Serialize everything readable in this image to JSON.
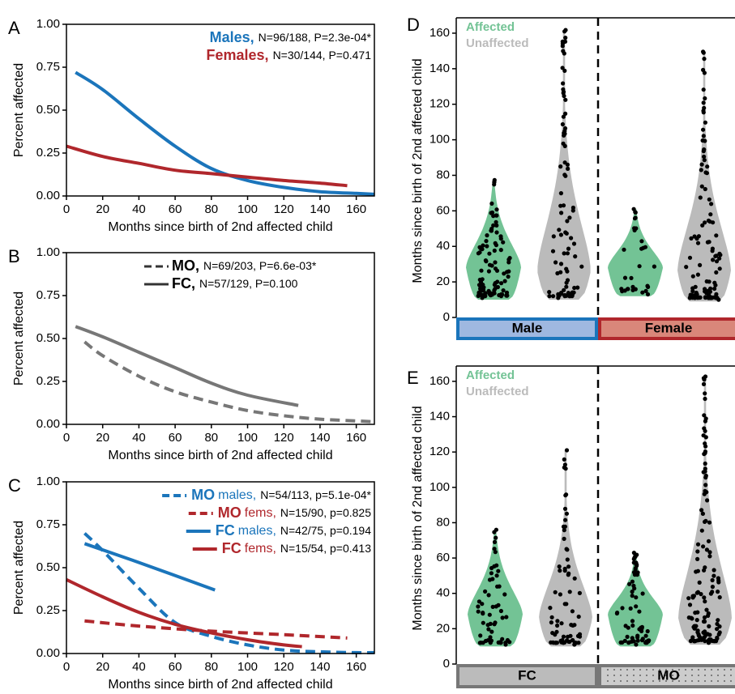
{
  "colors": {
    "male": "#1B75BB",
    "female": "#B0272C",
    "grey_line": "#777777",
    "affected": "#73C395",
    "unaffected": "#BBBBBB",
    "male_box_fill": "#9FB8E0",
    "female_box_fill": "#D9877A",
    "fc_box_fill": "#BBBBBB",
    "mo_box_fill": "#CCCCCC"
  },
  "chart_data": [
    {
      "panel": "A",
      "type": "line",
      "xlabel": "Months since birth of 2nd affected child",
      "ylabel": "Percent affected",
      "xlim": [
        0,
        170
      ],
      "ylim": [
        0,
        1
      ],
      "xticks": [
        "0",
        "20",
        "40",
        "60",
        "80",
        "100",
        "120",
        "140",
        "160"
      ],
      "yticks": [
        "0.00",
        "0.25",
        "0.50",
        "0.75",
        "1.00"
      ],
      "legend_position": "top-right",
      "series": [
        {
          "name": "Males,",
          "stat": "N=96/188, P=2.3e-04*",
          "color": "male",
          "dash": false,
          "x": [
            5,
            20,
            40,
            60,
            80,
            100,
            120,
            140,
            160,
            170
          ],
          "y": [
            0.72,
            0.62,
            0.45,
            0.29,
            0.16,
            0.09,
            0.05,
            0.025,
            0.015,
            0.01
          ]
        },
        {
          "name": "Females,",
          "stat": "N=30/144, P=0.471",
          "color": "female",
          "dash": false,
          "x": [
            0,
            20,
            40,
            60,
            80,
            100,
            120,
            140,
            155
          ],
          "y": [
            0.29,
            0.23,
            0.19,
            0.15,
            0.13,
            0.11,
            0.09,
            0.075,
            0.06
          ]
        }
      ]
    },
    {
      "panel": "B",
      "type": "line",
      "xlabel": "Months since birth of 2nd affected child",
      "ylabel": "Percent affected",
      "xlim": [
        0,
        170
      ],
      "ylim": [
        0,
        1
      ],
      "xticks": [
        "0",
        "20",
        "40",
        "60",
        "80",
        "100",
        "120",
        "140",
        "160"
      ],
      "yticks": [
        "0.00",
        "0.25",
        "0.50",
        "0.75",
        "1.00"
      ],
      "legend_position": "top-right",
      "series": [
        {
          "name": "MO,",
          "stat": "N=69/203, P=6.6e-03*",
          "color": "grey_line",
          "dash": true,
          "x": [
            10,
            20,
            40,
            60,
            80,
            100,
            120,
            140,
            160,
            170
          ],
          "y": [
            0.48,
            0.4,
            0.28,
            0.19,
            0.13,
            0.08,
            0.05,
            0.03,
            0.02,
            0.015
          ]
        },
        {
          "name": "FC,",
          "stat": "N=57/129, P=0.100",
          "color": "grey_line",
          "dash": false,
          "x": [
            5,
            20,
            40,
            60,
            80,
            100,
            128
          ],
          "y": [
            0.57,
            0.51,
            0.42,
            0.33,
            0.24,
            0.17,
            0.11
          ]
        }
      ]
    },
    {
      "panel": "C",
      "type": "line",
      "xlabel": "Months since birth of 2nd affected child",
      "ylabel": "Percent affected",
      "xlim": [
        0,
        170
      ],
      "ylim": [
        0,
        1
      ],
      "xticks": [
        "0",
        "20",
        "40",
        "60",
        "80",
        "100",
        "120",
        "140",
        "160"
      ],
      "yticks": [
        "0.00",
        "0.25",
        "0.50",
        "0.75",
        "1.00"
      ],
      "legend_position": "top-right",
      "series": [
        {
          "name": "MO",
          "suffix": "males,",
          "stat": "N=54/113, p=5.1e-04*",
          "color": "male",
          "dash": true,
          "x": [
            10,
            20,
            40,
            60,
            80,
            100,
            120,
            140,
            160,
            170
          ],
          "y": [
            0.7,
            0.6,
            0.38,
            0.18,
            0.1,
            0.05,
            0.02,
            0.01,
            0.005,
            0.005
          ]
        },
        {
          "name": "MO",
          "suffix": "fems,",
          "stat": "N=15/90, p=0.825",
          "color": "female",
          "dash": true,
          "x": [
            10,
            40,
            80,
            120,
            155
          ],
          "y": [
            0.19,
            0.16,
            0.13,
            0.11,
            0.09
          ]
        },
        {
          "name": "FC",
          "suffix": "males,",
          "stat": "N=42/75, p=0.194",
          "color": "male",
          "dash": false,
          "x": [
            10,
            40,
            82
          ],
          "y": [
            0.64,
            0.53,
            0.37
          ]
        },
        {
          "name": "FC",
          "suffix": "fems,",
          "stat": "N=15/54, p=0.413",
          "color": "female",
          "dash": false,
          "x": [
            0,
            20,
            40,
            60,
            80,
            100,
            120,
            130
          ],
          "y": [
            0.43,
            0.33,
            0.24,
            0.17,
            0.12,
            0.08,
            0.05,
            0.04
          ]
        }
      ]
    },
    {
      "panel": "D",
      "type": "violin",
      "ylabel": "Months since birth of 2nd affected child",
      "ylim": [
        0,
        165
      ],
      "yticks": [
        "0",
        "20",
        "40",
        "60",
        "80",
        "100",
        "120",
        "140",
        "160"
      ],
      "legend": [
        "Affected",
        "Unaffected"
      ],
      "legend_position": "top-left",
      "groups": [
        {
          "label": "Male",
          "box_fill": "male_box_fill",
          "box_border": "male",
          "violins": [
            {
              "status": "Affected",
              "min": 10,
              "max": 76,
              "count": 96
            },
            {
              "status": "Unaffected",
              "min": 10,
              "max": 161,
              "count": 92
            }
          ]
        },
        {
          "label": "Female",
          "box_fill": "female_box_fill",
          "box_border": "female",
          "violins": [
            {
              "status": "Affected",
              "min": 12,
              "max": 61,
              "count": 30
            },
            {
              "status": "Unaffected",
              "min": 9,
              "max": 149,
              "count": 114
            }
          ]
        }
      ]
    },
    {
      "panel": "E",
      "type": "violin",
      "ylabel": "Months since birth of 2nd affected child",
      "ylim": [
        0,
        165
      ],
      "yticks": [
        "0",
        "20",
        "40",
        "60",
        "80",
        "100",
        "120",
        "140",
        "160"
      ],
      "legend": [
        "Affected",
        "Unaffected"
      ],
      "legend_position": "top-left",
      "groups": [
        {
          "label": "FC",
          "box_fill": "fc_box_fill",
          "box_border": "grey_line",
          "violins": [
            {
              "status": "Affected",
              "min": 10,
              "max": 76,
              "count": 57
            },
            {
              "status": "Unaffected",
              "min": 10,
              "max": 121,
              "count": 72
            }
          ]
        },
        {
          "label": "MO",
          "box_fill": "mo_box_fill",
          "box_border": "grey_line",
          "violins": [
            {
              "status": "Affected",
              "min": 10,
              "max": 61,
              "count": 69
            },
            {
              "status": "Unaffected",
              "min": 11,
              "max": 161,
              "count": 134
            }
          ]
        }
      ]
    }
  ]
}
